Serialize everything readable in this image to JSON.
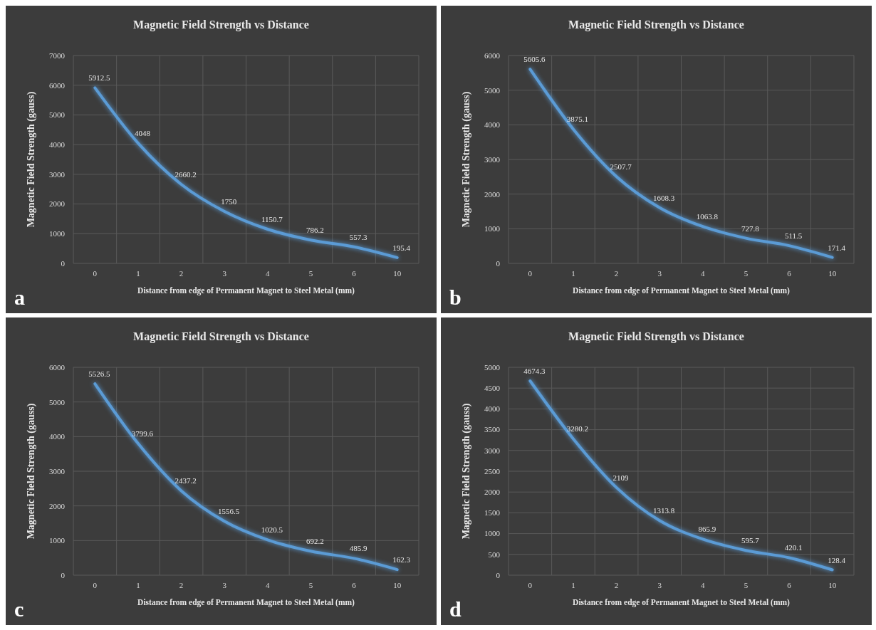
{
  "chart_data": [
    {
      "type": "line",
      "title": "Magnetic Field Strength vs Distance",
      "xlabel": "Distance from edge of Permanent Magnet to Steel Metal (mm)",
      "ylabel": "Magnetic Field Strength (gauss)",
      "categories": [
        "0",
        "1",
        "2",
        "3",
        "4",
        "5",
        "6",
        "10"
      ],
      "series": [
        {
          "color": "#5b9bd5",
          "values": [
            5912.5,
            4048,
            2660.2,
            1750,
            1150.7,
            786.2,
            557.3,
            195.4
          ]
        }
      ],
      "ylim": [
        0,
        7000
      ],
      "yticks": [
        0,
        1000,
        2000,
        3000,
        4000,
        5000,
        6000,
        7000
      ],
      "grid": true,
      "data_labels": true,
      "annotations": [
        "a"
      ]
    },
    {
      "type": "line",
      "title": "Magnetic Field Strength vs Distance",
      "xlabel": "Distance from edge of Permanent Magnet to Steel Metal (mm)",
      "ylabel": "Magnetic Field Strength (gauss)",
      "categories": [
        "0",
        "1",
        "2",
        "3",
        "4",
        "5",
        "6",
        "10"
      ],
      "series": [
        {
          "color": "#5b9bd5",
          "values": [
            5605.6,
            3875.1,
            2507.7,
            1608.3,
            1063.8,
            727.8,
            511.5,
            171.4
          ]
        }
      ],
      "ylim": [
        0,
        6000
      ],
      "yticks": [
        0,
        1000,
        2000,
        3000,
        4000,
        5000,
        6000
      ],
      "grid": true,
      "data_labels": true,
      "annotations": [
        "b"
      ]
    },
    {
      "type": "line",
      "title": "Magnetic Field Strength vs Distance",
      "xlabel": "Distance from edge of Permanent Magnet to Steel Metal (mm)",
      "ylabel": "Magnetic Field Strength (gauss)",
      "categories": [
        "0",
        "1",
        "2",
        "3",
        "4",
        "5",
        "6",
        "10"
      ],
      "series": [
        {
          "color": "#5b9bd5",
          "values": [
            5526.5,
            3799.6,
            2437.2,
            1556.5,
            1020.5,
            692.2,
            485.9,
            162.3
          ]
        }
      ],
      "ylim": [
        0,
        6000
      ],
      "yticks": [
        0,
        1000,
        2000,
        3000,
        4000,
        5000,
        6000
      ],
      "grid": true,
      "data_labels": true,
      "annotations": [
        "c"
      ]
    },
    {
      "type": "line",
      "title": "Magnetic Field Strength vs Distance",
      "xlabel": "Distance from edge of Permanent Magnet to Steel Metal (mm)",
      "ylabel": "Magnetic Field Strength (gauss)",
      "categories": [
        "0",
        "1",
        "2",
        "3",
        "4",
        "5",
        "6",
        "10"
      ],
      "series": [
        {
          "color": "#5b9bd5",
          "values": [
            4674.3,
            3280.2,
            2109,
            1313.8,
            865.9,
            595.7,
            420.1,
            128.4
          ]
        }
      ],
      "ylim": [
        0,
        5000
      ],
      "yticks": [
        0,
        500,
        1000,
        1500,
        2000,
        2500,
        3000,
        3500,
        4000,
        4500,
        5000
      ],
      "grid": true,
      "data_labels": true,
      "annotations": [
        "d"
      ]
    }
  ]
}
